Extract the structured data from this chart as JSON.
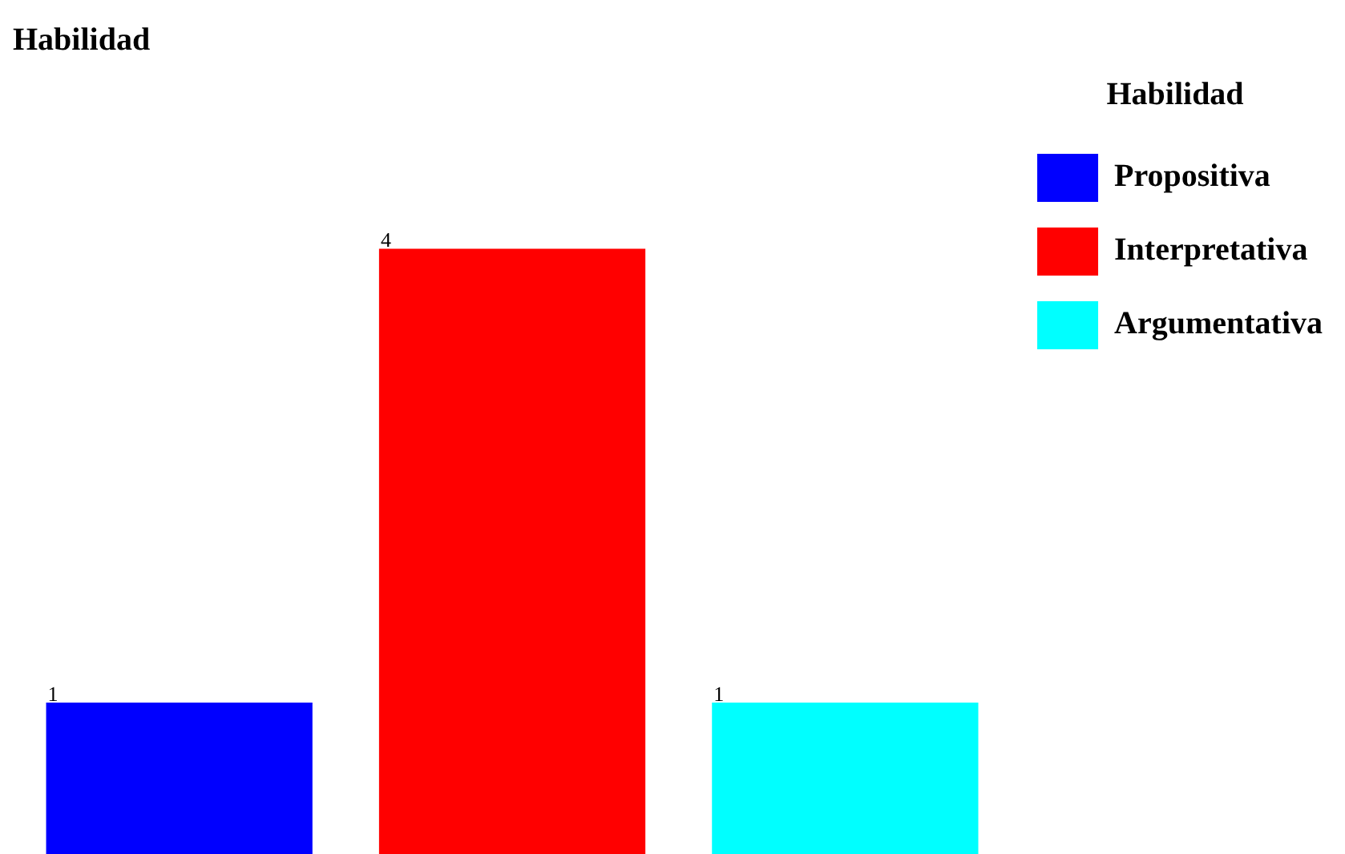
{
  "chart_data": {
    "type": "bar",
    "title": "Habilidad",
    "legend_title": "Habilidad",
    "categories": [
      null,
      null,
      null
    ],
    "stacked": true,
    "data_labels": true,
    "legend": "right",
    "series": [
      {
        "name": "Propositiva",
        "color": "#0000ff",
        "values": [
          1,
          null,
          null
        ]
      },
      {
        "name": "Interpretativa",
        "color": "#ff0000",
        "values": [
          null,
          4,
          null
        ]
      },
      {
        "name": "Argumentativa",
        "color": "#00ffff",
        "values": [
          null,
          null,
          1
        ]
      }
    ]
  }
}
